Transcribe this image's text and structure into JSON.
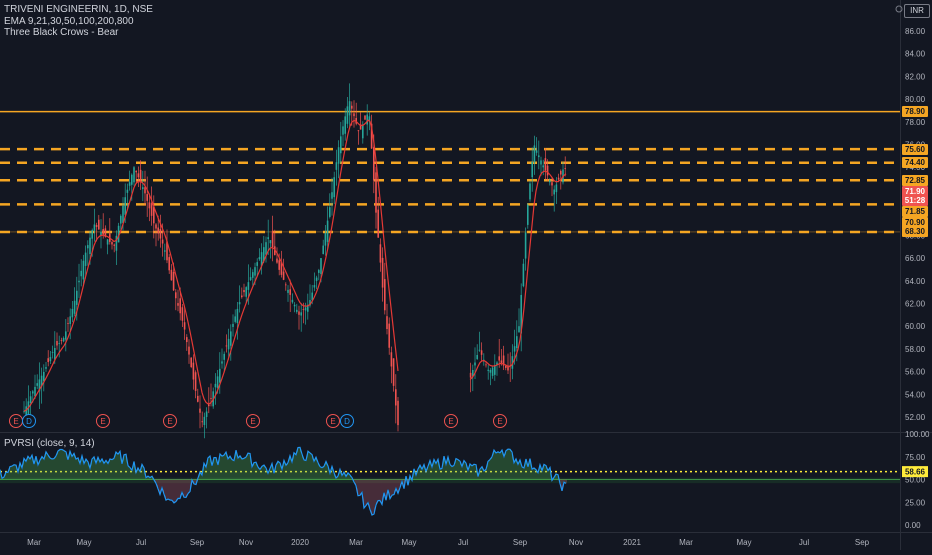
{
  "legend": {
    "symbol": "TRIVENI ENGINEERIN, 1D, NSE",
    "ema": "EMA 9,21,30,50,100,200,800",
    "pattern": "Three Black Crows - Bear"
  },
  "currency": "INR",
  "indicator": {
    "label": "PVRSI (close, 9, 14)",
    "level_value": "58.66"
  },
  "price_axis": [
    "86.00",
    "84.00",
    "82.00",
    "80.00",
    "78.00",
    "76.00",
    "74.00",
    "72.00",
    "70.00",
    "68.00",
    "66.00",
    "64.00",
    "62.00",
    "60.00",
    "58.00",
    "56.00",
    "54.00",
    "52.00"
  ],
  "price_badges": [
    {
      "label": "78.90",
      "bg": "#f5a623",
      "fg": "#131722"
    },
    {
      "label": "75.60",
      "bg": "#f5a623",
      "fg": "#131722"
    },
    {
      "label": "74.40",
      "bg": "#f5a623",
      "fg": "#131722"
    },
    {
      "label": "72.85",
      "bg": "#f5a623",
      "fg": "#131722"
    },
    {
      "label": "71.90",
      "bg": "#ef5350",
      "fg": "#ffffff"
    },
    {
      "label": "51:28",
      "bg": "#ef5350",
      "fg": "#ffffff"
    },
    {
      "label": "71.85",
      "bg": "#f5a623",
      "fg": "#131722"
    },
    {
      "label": "70.90",
      "bg": "#f5a623",
      "fg": "#131722"
    },
    {
      "label": "68.30",
      "bg": "#f5a623",
      "fg": "#131722"
    }
  ],
  "osc_axis": [
    "100.00",
    "75.00",
    "50.00",
    "25.00",
    "0.00"
  ],
  "time_axis": [
    "Mar",
    "May",
    "Jul",
    "Sep",
    "Nov",
    "2020",
    "Mar",
    "May",
    "Jul",
    "Sep",
    "Nov",
    "2021",
    "Mar",
    "May",
    "Jul",
    "Sep"
  ],
  "events": [
    {
      "label": "E",
      "type": "earnings"
    },
    {
      "label": "D",
      "type": "dividend"
    },
    {
      "label": "E",
      "type": "earnings"
    },
    {
      "label": "E",
      "type": "earnings"
    },
    {
      "label": "E",
      "type": "earnings"
    },
    {
      "label": "E",
      "type": "earnings"
    },
    {
      "label": "D",
      "type": "dividend"
    },
    {
      "label": "E",
      "type": "earnings"
    },
    {
      "label": "E",
      "type": "earnings"
    }
  ],
  "colors": {
    "background": "#131722",
    "up": "#26a69a",
    "down": "#ef5350",
    "ema": "#e53935",
    "level": "#f5a623",
    "osc_line": "#2196f3",
    "osc_hist": "#4caf50",
    "osc_level": "#ffeb3b"
  },
  "chart_data": {
    "type": "candlestick",
    "title": "TRIVENI ENGINEERIN, 1D, NSE",
    "ylim": [
      50.5,
      87.5
    ],
    "xlabel": "",
    "ylabel": "",
    "horizontal_levels": [
      78.9,
      75.6,
      74.4,
      72.85,
      71.9,
      70.9,
      68.3
    ],
    "close_path": [
      [
        0,
        52.5
      ],
      [
        10,
        54.5
      ],
      [
        20,
        56
      ],
      [
        30,
        58
      ],
      [
        40,
        59
      ],
      [
        50,
        62
      ],
      [
        60,
        66
      ],
      [
        70,
        69
      ],
      [
        80,
        68
      ],
      [
        90,
        67
      ],
      [
        100,
        71
      ],
      [
        110,
        74
      ],
      [
        120,
        72
      ],
      [
        130,
        69
      ],
      [
        140,
        67
      ],
      [
        150,
        63
      ],
      [
        160,
        60
      ],
      [
        170,
        55
      ],
      [
        178,
        51.5
      ],
      [
        185,
        53
      ],
      [
        195,
        56
      ],
      [
        205,
        59
      ],
      [
        215,
        62
      ],
      [
        225,
        64
      ],
      [
        235,
        66
      ],
      [
        245,
        68
      ],
      [
        255,
        65
      ],
      [
        265,
        63
      ],
      [
        275,
        61
      ],
      [
        285,
        62
      ],
      [
        295,
        65
      ],
      [
        305,
        70
      ],
      [
        315,
        76
      ],
      [
        325,
        80
      ],
      [
        335,
        77
      ],
      [
        345,
        79
      ],
      [
        352,
        70
      ],
      [
        360,
        62
      ],
      [
        368,
        56
      ],
      [
        375,
        50.5
      ],
      [
        445,
        55
      ],
      [
        455,
        58
      ],
      [
        465,
        56
      ],
      [
        475,
        57
      ],
      [
        485,
        56
      ],
      [
        495,
        60
      ],
      [
        503,
        70
      ],
      [
        510,
        76
      ],
      [
        520,
        74
      ],
      [
        530,
        72
      ],
      [
        540,
        74
      ],
      [
        550,
        73
      ],
      [
        560,
        75
      ],
      [
        566,
        71.5
      ]
    ],
    "pvrsi_approx": [
      [
        0,
        55
      ],
      [
        30,
        70
      ],
      [
        60,
        80
      ],
      [
        90,
        68
      ],
      [
        120,
        75
      ],
      [
        150,
        55
      ],
      [
        170,
        25
      ],
      [
        190,
        40
      ],
      [
        210,
        70
      ],
      [
        240,
        78
      ],
      [
        270,
        60
      ],
      [
        300,
        80
      ],
      [
        330,
        62
      ],
      [
        350,
        50
      ],
      [
        370,
        15
      ],
      [
        390,
        35
      ],
      [
        420,
        60
      ],
      [
        450,
        72
      ],
      [
        480,
        58
      ],
      [
        500,
        85
      ],
      [
        520,
        70
      ],
      [
        545,
        62
      ],
      [
        566,
        40
      ]
    ]
  }
}
